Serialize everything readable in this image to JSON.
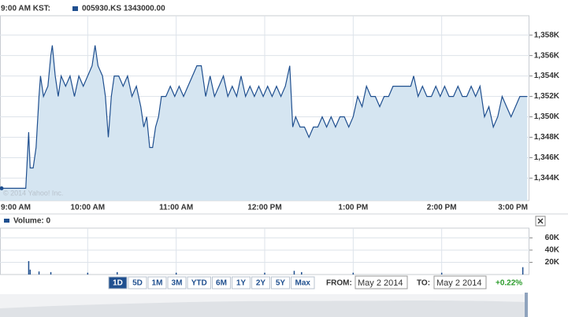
{
  "chart_data": [
    {
      "type": "line",
      "time_label": "9:00 AM KST:",
      "watermark": "© 2014 Yahoo! Inc.",
      "xlim": [
        "09:00",
        "15:00"
      ],
      "xticks": [
        {
          "value": "09:00",
          "label": "9:00 AM"
        },
        {
          "value": "10:00",
          "label": "10:00 AM"
        },
        {
          "value": "11:00",
          "label": "11:00 AM"
        },
        {
          "value": "12:00",
          "label": "12:00 PM"
        },
        {
          "value": "13:00",
          "label": "1:00 PM"
        },
        {
          "value": "14:00",
          "label": "2:00 PM"
        },
        {
          "value": "15:00",
          "label": "3:00 PM"
        }
      ],
      "ylim": [
        1341800,
        1359900
      ],
      "yticks": [
        {
          "value": 1344000,
          "label": "1,344K"
        },
        {
          "value": 1346000,
          "label": "1,346K"
        },
        {
          "value": 1348000,
          "label": "1,348K"
        },
        {
          "value": 1350000,
          "label": "1,350K"
        },
        {
          "value": 1352000,
          "label": "1,352K"
        },
        {
          "value": 1354000,
          "label": "1,354K"
        },
        {
          "value": 1356000,
          "label": "1,356K"
        },
        {
          "value": 1358000,
          "label": "1,358K"
        }
      ],
      "grid": true,
      "fill_color": "#d5e5f1",
      "x": [
        "09:00",
        "09:03",
        "09:06",
        "09:09",
        "09:12",
        "09:15",
        "09:18",
        "09:20",
        "09:21",
        "09:23",
        "09:25",
        "09:27",
        "09:28",
        "09:30",
        "09:33",
        "09:35",
        "09:36",
        "09:38",
        "09:40",
        "09:42",
        "09:45",
        "09:48",
        "09:51",
        "09:54",
        "09:57",
        "10:00",
        "10:03",
        "10:05",
        "10:07",
        "10:10",
        "10:12",
        "10:14",
        "10:16",
        "10:18",
        "10:21",
        "10:24",
        "10:27",
        "10:30",
        "10:33",
        "10:36",
        "10:38",
        "10:40",
        "10:42",
        "10:44",
        "10:46",
        "10:48",
        "10:50",
        "10:53",
        "10:56",
        "10:59",
        "11:02",
        "11:05",
        "11:08",
        "11:11",
        "11:14",
        "11:17",
        "11:20",
        "11:23",
        "11:26",
        "11:29",
        "11:32",
        "11:35",
        "11:38",
        "11:41",
        "11:44",
        "11:47",
        "11:50",
        "11:53",
        "11:56",
        "11:59",
        "12:02",
        "12:05",
        "12:08",
        "12:11",
        "12:14",
        "12:17",
        "12:19",
        "12:21",
        "12:24",
        "12:27",
        "12:30",
        "12:33",
        "12:36",
        "12:39",
        "12:42",
        "12:45",
        "12:48",
        "12:51",
        "12:54",
        "12:57",
        "13:00",
        "13:03",
        "13:06",
        "13:09",
        "13:12",
        "13:15",
        "13:18",
        "13:21",
        "13:24",
        "13:27",
        "13:30",
        "13:33",
        "13:36",
        "13:39",
        "13:41",
        "13:44",
        "13:47",
        "13:50",
        "13:53",
        "13:56",
        "13:59",
        "14:02",
        "14:05",
        "14:08",
        "14:11",
        "14:14",
        "14:17",
        "14:20",
        "14:23",
        "14:26",
        "14:29",
        "14:32",
        "14:35",
        "14:38",
        "14:41",
        "14:44",
        "14:47",
        "14:50",
        "14:53",
        "14:56",
        "14:58"
      ],
      "series": [
        {
          "name": "005930.KS 1343000.00",
          "color": "#1f4f8f",
          "values": [
            1343000,
            1343000,
            1343000,
            1343000,
            1343000,
            1343000,
            1343000,
            1348500,
            1345000,
            1345000,
            1347000,
            1352000,
            1354000,
            1352000,
            1353000,
            1356000,
            1357000,
            1354000,
            1352000,
            1354000,
            1353000,
            1354000,
            1352000,
            1354000,
            1353000,
            1354000,
            1355000,
            1357000,
            1355000,
            1354000,
            1352000,
            1348000,
            1352000,
            1354000,
            1354000,
            1353000,
            1354000,
            1352000,
            1353000,
            1351000,
            1349000,
            1350000,
            1347000,
            1347000,
            1349000,
            1350000,
            1352000,
            1352000,
            1353000,
            1352000,
            1353000,
            1352000,
            1353000,
            1354000,
            1355000,
            1355000,
            1352000,
            1354000,
            1352000,
            1353000,
            1354000,
            1352000,
            1353000,
            1352000,
            1354000,
            1352000,
            1353000,
            1352000,
            1353000,
            1352000,
            1353000,
            1352000,
            1353000,
            1352000,
            1353000,
            1355000,
            1349000,
            1350000,
            1349000,
            1349000,
            1348000,
            1349000,
            1349000,
            1350000,
            1349000,
            1350000,
            1349000,
            1350000,
            1350000,
            1349000,
            1350000,
            1352000,
            1351000,
            1353000,
            1352000,
            1352000,
            1351000,
            1352000,
            1352000,
            1353000,
            1353000,
            1353000,
            1353000,
            1353000,
            1354000,
            1352000,
            1353000,
            1352000,
            1352000,
            1353000,
            1352000,
            1353000,
            1352000,
            1352000,
            1353000,
            1352000,
            1352000,
            1353000,
            1352000,
            1353000,
            1350000,
            1351000,
            1349000,
            1350000,
            1352000,
            1351000,
            1350000,
            1351000,
            1352000,
            1352000,
            1352000
          ]
        }
      ]
    },
    {
      "type": "bar",
      "xlim": [
        "09:00",
        "15:00"
      ],
      "xticks": [
        "10:00",
        "11:00",
        "12:00",
        "13:00",
        "14:00"
      ],
      "ylim": [
        0,
        76000
      ],
      "yticks": [
        {
          "value": 20000,
          "label": "20K"
        },
        {
          "value": 40000,
          "label": "40K"
        },
        {
          "value": 60000,
          "label": "60K"
        }
      ],
      "grid": true,
      "x": [
        "09:20",
        "09:21",
        "09:27",
        "09:35",
        "10:00",
        "10:20",
        "11:00",
        "12:00",
        "12:20",
        "12:25",
        "13:00",
        "14:00",
        "14:55"
      ],
      "series": [
        {
          "name": "Volume: 0",
          "color": "#1f4f8f",
          "values": [
            22000,
            8000,
            5000,
            4000,
            3000,
            4000,
            3000,
            3000,
            6000,
            4000,
            3000,
            3000,
            12000
          ]
        }
      ]
    }
  ],
  "ui": {
    "range_buttons": [
      "1D",
      "5D",
      "1M",
      "3M",
      "YTD",
      "6M",
      "1Y",
      "2Y",
      "5Y",
      "Max"
    ],
    "active_range": "1D",
    "from_label": "FROM:",
    "from_value": "May 2 2014",
    "to_label": "TO:",
    "to_value": "May 2 2014",
    "change": "+0.22%"
  }
}
